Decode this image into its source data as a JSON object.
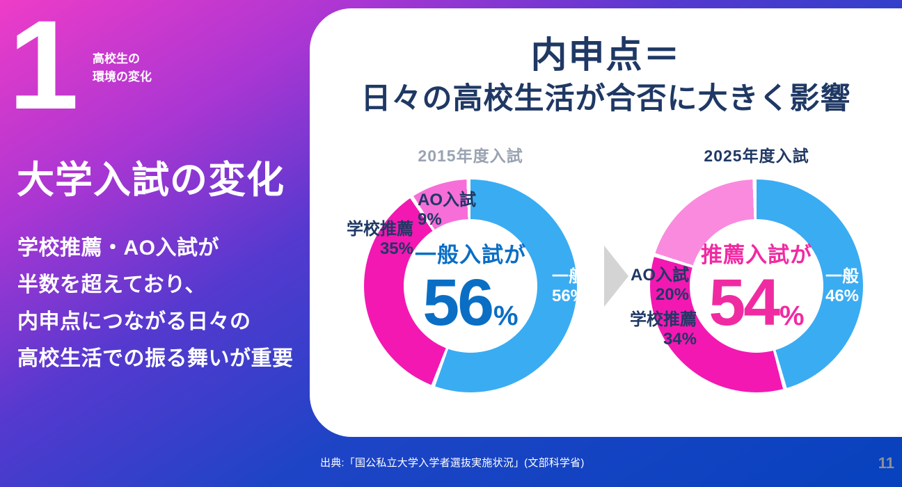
{
  "sidebar": {
    "section_number": "1",
    "section_label": {
      "line1": "高校生の",
      "line2": "環境の変化"
    },
    "heading": "大学入試の変化",
    "body": {
      "line1": "学校推薦・AO入試が",
      "line2": "半数を超えており、",
      "line3": "内申点につながる日々の",
      "line4": "高校生活での振る舞いが重要"
    }
  },
  "card": {
    "title": {
      "line1": "内申点＝",
      "line2": "日々の高校生活が合否に大きく影響"
    }
  },
  "footer": {
    "source": "出典:「国公私立大学入学者選抜実施状況」(文部科学省)",
    "page_number": "11"
  },
  "colors": {
    "bg_gradient": [
      "#ee3cc8",
      "#a936d3",
      "#5639cf",
      "#1e44c6",
      "#0742bd"
    ],
    "card_bg": "#ffffff",
    "navy": "#1f3864",
    "gray_title": "#99a3b2",
    "blue_accent": "#0a6ec4",
    "pink_accent": "#f02ba2",
    "arrow_gray": "#d4d4d4",
    "page_number_gray": "#8d9095"
  },
  "chart_data": [
    {
      "type": "pie",
      "donut": true,
      "title": "2015年度入試",
      "title_color": "#99a3b2",
      "start_angle_deg": 0,
      "direction": "clockwise",
      "slice_gap_color": "#ffffff",
      "segments": [
        {
          "label": "一般",
          "value": 56,
          "pct_label": "56%",
          "color": "#3aacf2",
          "label_placement": "on-slice",
          "label_color": "#ffffff"
        },
        {
          "label": "学校推薦",
          "value": 35,
          "pct_label": "35%",
          "color": "#f318b2",
          "label_placement": "outside",
          "label_color": "#1f3864"
        },
        {
          "label": "AO入試",
          "value": 9,
          "pct_label": "9%",
          "color": "#f76ed8",
          "label_placement": "outside",
          "label_color": "#1f3864"
        }
      ],
      "center": {
        "label": "一般入試が",
        "value": "56",
        "unit": "%",
        "color": "#0a6ec4"
      }
    },
    {
      "type": "pie",
      "donut": true,
      "title": "2025年度入試",
      "title_color": "#1f3864",
      "start_angle_deg": 0,
      "direction": "clockwise",
      "slice_gap_color": "#ffffff",
      "segments": [
        {
          "label": "一般",
          "value": 46,
          "pct_label": "46%",
          "color": "#3aacf2",
          "label_placement": "on-slice",
          "label_color": "#ffffff"
        },
        {
          "label": "学校推薦",
          "value": 34,
          "pct_label": "34%",
          "color": "#f318b2",
          "label_placement": "outside",
          "label_color": "#1f3864"
        },
        {
          "label": "AO入試",
          "value": 20,
          "pct_label": "20%",
          "color": "#f98ade",
          "label_placement": "outside",
          "label_color": "#1f3864"
        }
      ],
      "center": {
        "label": "推薦入試が",
        "value": "54",
        "unit": "%",
        "color": "#f02ba2"
      }
    }
  ]
}
